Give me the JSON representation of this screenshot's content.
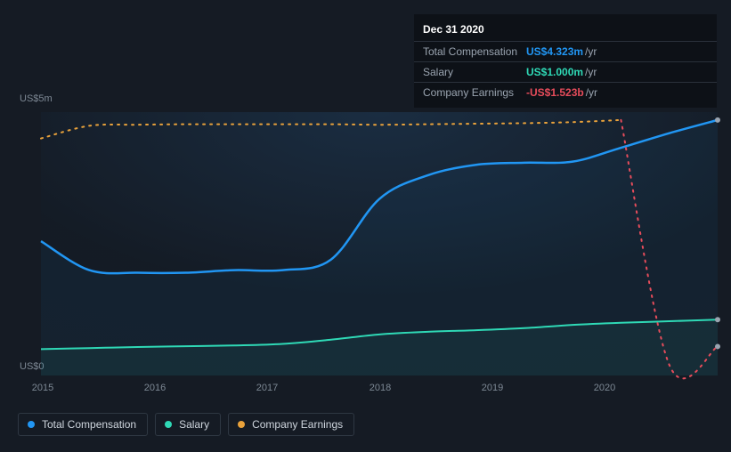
{
  "chart": {
    "type": "area-line",
    "background_color": "#151b24",
    "plot_gradient_from": "rgba(30,60,90,0.55)",
    "plot_gradient_to": "rgba(21,27,36,0)",
    "y_axis": {
      "min": 0,
      "max": 5000000,
      "ticks": [
        {
          "value": 0,
          "label": "US$0"
        },
        {
          "value": 5000000,
          "label": "US$5m"
        }
      ],
      "tick_color": "#7d8894",
      "fontsize": 11
    },
    "x_axis": {
      "labels": [
        "2015",
        "2016",
        "2017",
        "2018",
        "2019",
        "2020"
      ],
      "tick_color": "#7d8894",
      "fontsize": 11
    },
    "series": [
      {
        "id": "total_comp",
        "name": "Total Compensation",
        "color": "#2196f3",
        "line_width": 2.5,
        "fill": "rgba(33,150,243,0.06)",
        "style": "solid",
        "end_dot": true,
        "values": [
          2550000,
          2000000,
          1950000,
          1950000,
          2000000,
          2000000,
          2200000,
          3350000,
          3800000,
          4000000,
          4040000,
          4060000,
          4323000,
          4600000,
          4850000
        ]
      },
      {
        "id": "salary",
        "name": "Salary",
        "color": "#2fd9b6",
        "line_width": 2,
        "fill": "rgba(47,217,182,0.06)",
        "style": "solid",
        "end_dot": true,
        "values": [
          500000,
          520000,
          540000,
          555000,
          570000,
          600000,
          680000,
          780000,
          830000,
          860000,
          900000,
          960000,
          1000000,
          1030000,
          1060000
        ]
      },
      {
        "id": "earnings",
        "name": "Company Earnings",
        "color": "#e9a23b",
        "negative_color": "#e74c5b",
        "line_width": 2,
        "style": "dotted",
        "end_dot": true,
        "values": [
          4500000,
          4740000,
          4760000,
          4770000,
          4770000,
          4770000,
          4770000,
          4760000,
          4770000,
          4780000,
          4790000,
          4810000,
          4850000,
          200000,
          550000
        ],
        "zero_cross_after_index": 12
      }
    ],
    "highlight_index": 12
  },
  "tooltip": {
    "title": "Dec 31 2020",
    "rows": [
      {
        "label": "Total Compensation",
        "value": "US$4.323m",
        "unit": "/yr",
        "color": "#2196f3"
      },
      {
        "label": "Salary",
        "value": "US$1.000m",
        "unit": "/yr",
        "color": "#2fd9b6"
      },
      {
        "label": "Company Earnings",
        "value": "-US$1.523b",
        "unit": "/yr",
        "color": "#e74c5b"
      }
    ]
  },
  "legend": {
    "items": [
      {
        "label": "Total Compensation",
        "color": "#2196f3"
      },
      {
        "label": "Salary",
        "color": "#2fd9b6"
      },
      {
        "label": "Company Earnings",
        "color": "#e9a23b"
      }
    ],
    "border_color": "#2e3742",
    "text_color": "#cfd6de"
  }
}
